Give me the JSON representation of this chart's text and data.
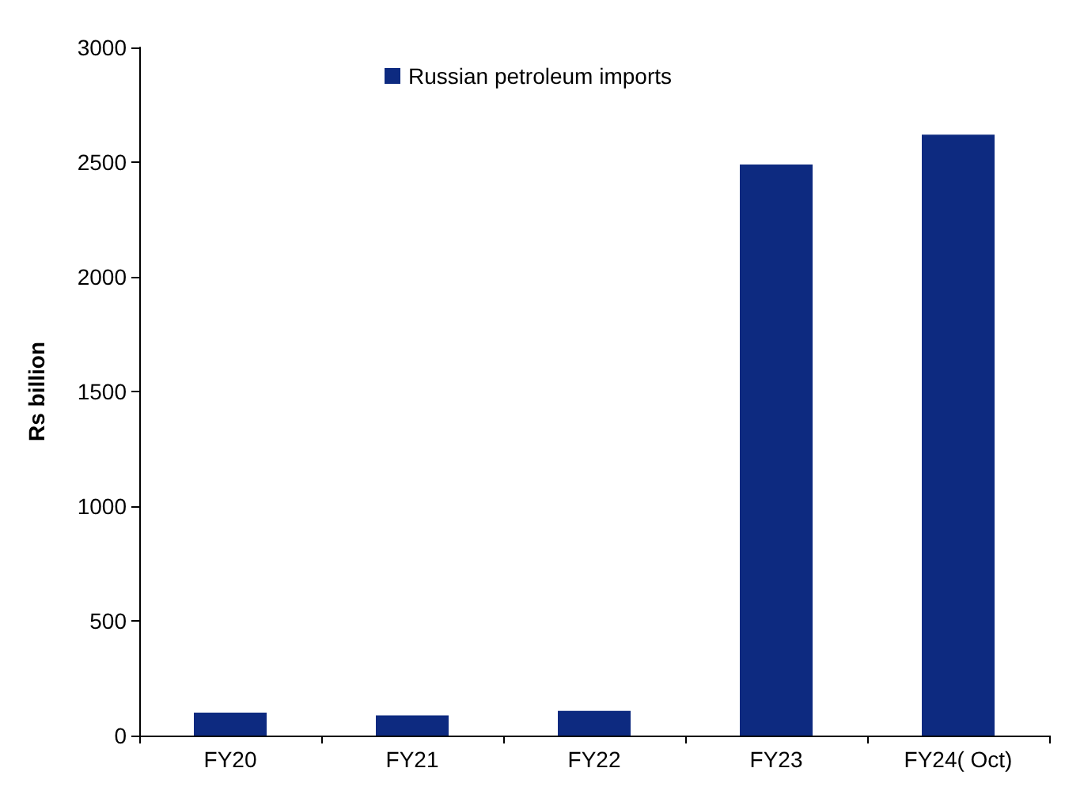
{
  "chart_data": {
    "type": "bar",
    "ylabel": "Rs billion",
    "categories": [
      "FY20",
      "FY21",
      "FY22",
      "FY23",
      "FY24( Oct)"
    ],
    "series": [
      {
        "name": "Russian petroleum imports",
        "color": "#0d2a80",
        "values": [
          100,
          88,
          108,
          2490,
          2620
        ]
      }
    ],
    "ylim": [
      0,
      3000
    ],
    "yticks": [
      0,
      500,
      1000,
      1500,
      2000,
      2500,
      3000
    ],
    "grid": false,
    "legend": "top"
  }
}
